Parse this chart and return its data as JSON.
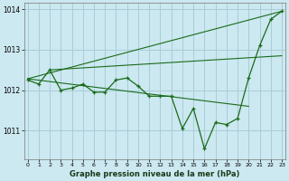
{
  "title": "Graphe pression niveau de la mer (hPa)",
  "bg_color": "#cce8f0",
  "grid_color": "#a8cdd8",
  "line_color": "#1a6b1a",
  "xlim": [
    -0.3,
    23.3
  ],
  "ylim": [
    1010.3,
    1014.15
  ],
  "yticks": [
    1011,
    1012,
    1013,
    1014
  ],
  "xticks": [
    0,
    1,
    2,
    3,
    4,
    5,
    6,
    7,
    8,
    9,
    10,
    11,
    12,
    13,
    14,
    15,
    16,
    17,
    18,
    19,
    20,
    21,
    22,
    23
  ],
  "series1_x": [
    0,
    1,
    2,
    3,
    4,
    5,
    6,
    7,
    8,
    9,
    10,
    11,
    12,
    13,
    14,
    15,
    16,
    17,
    18,
    19,
    20,
    21,
    22,
    23
  ],
  "series1_y": [
    1012.25,
    1012.15,
    1012.5,
    1012.0,
    1012.05,
    1012.15,
    1011.95,
    1011.95,
    1012.25,
    1012.3,
    1012.1,
    1011.85,
    1011.85,
    1011.85,
    1011.05,
    1011.55,
    1010.55,
    1011.2,
    1011.15,
    1011.3,
    1012.3,
    1013.1,
    1013.75,
    1013.95
  ],
  "trend1_x": [
    0,
    23
  ],
  "trend1_y": [
    1012.28,
    1013.95
  ],
  "trend2_x": [
    0,
    20
  ],
  "trend2_y": [
    1012.28,
    1011.6
  ],
  "trend3_x": [
    2,
    23
  ],
  "trend3_y": [
    1012.5,
    1012.85
  ]
}
